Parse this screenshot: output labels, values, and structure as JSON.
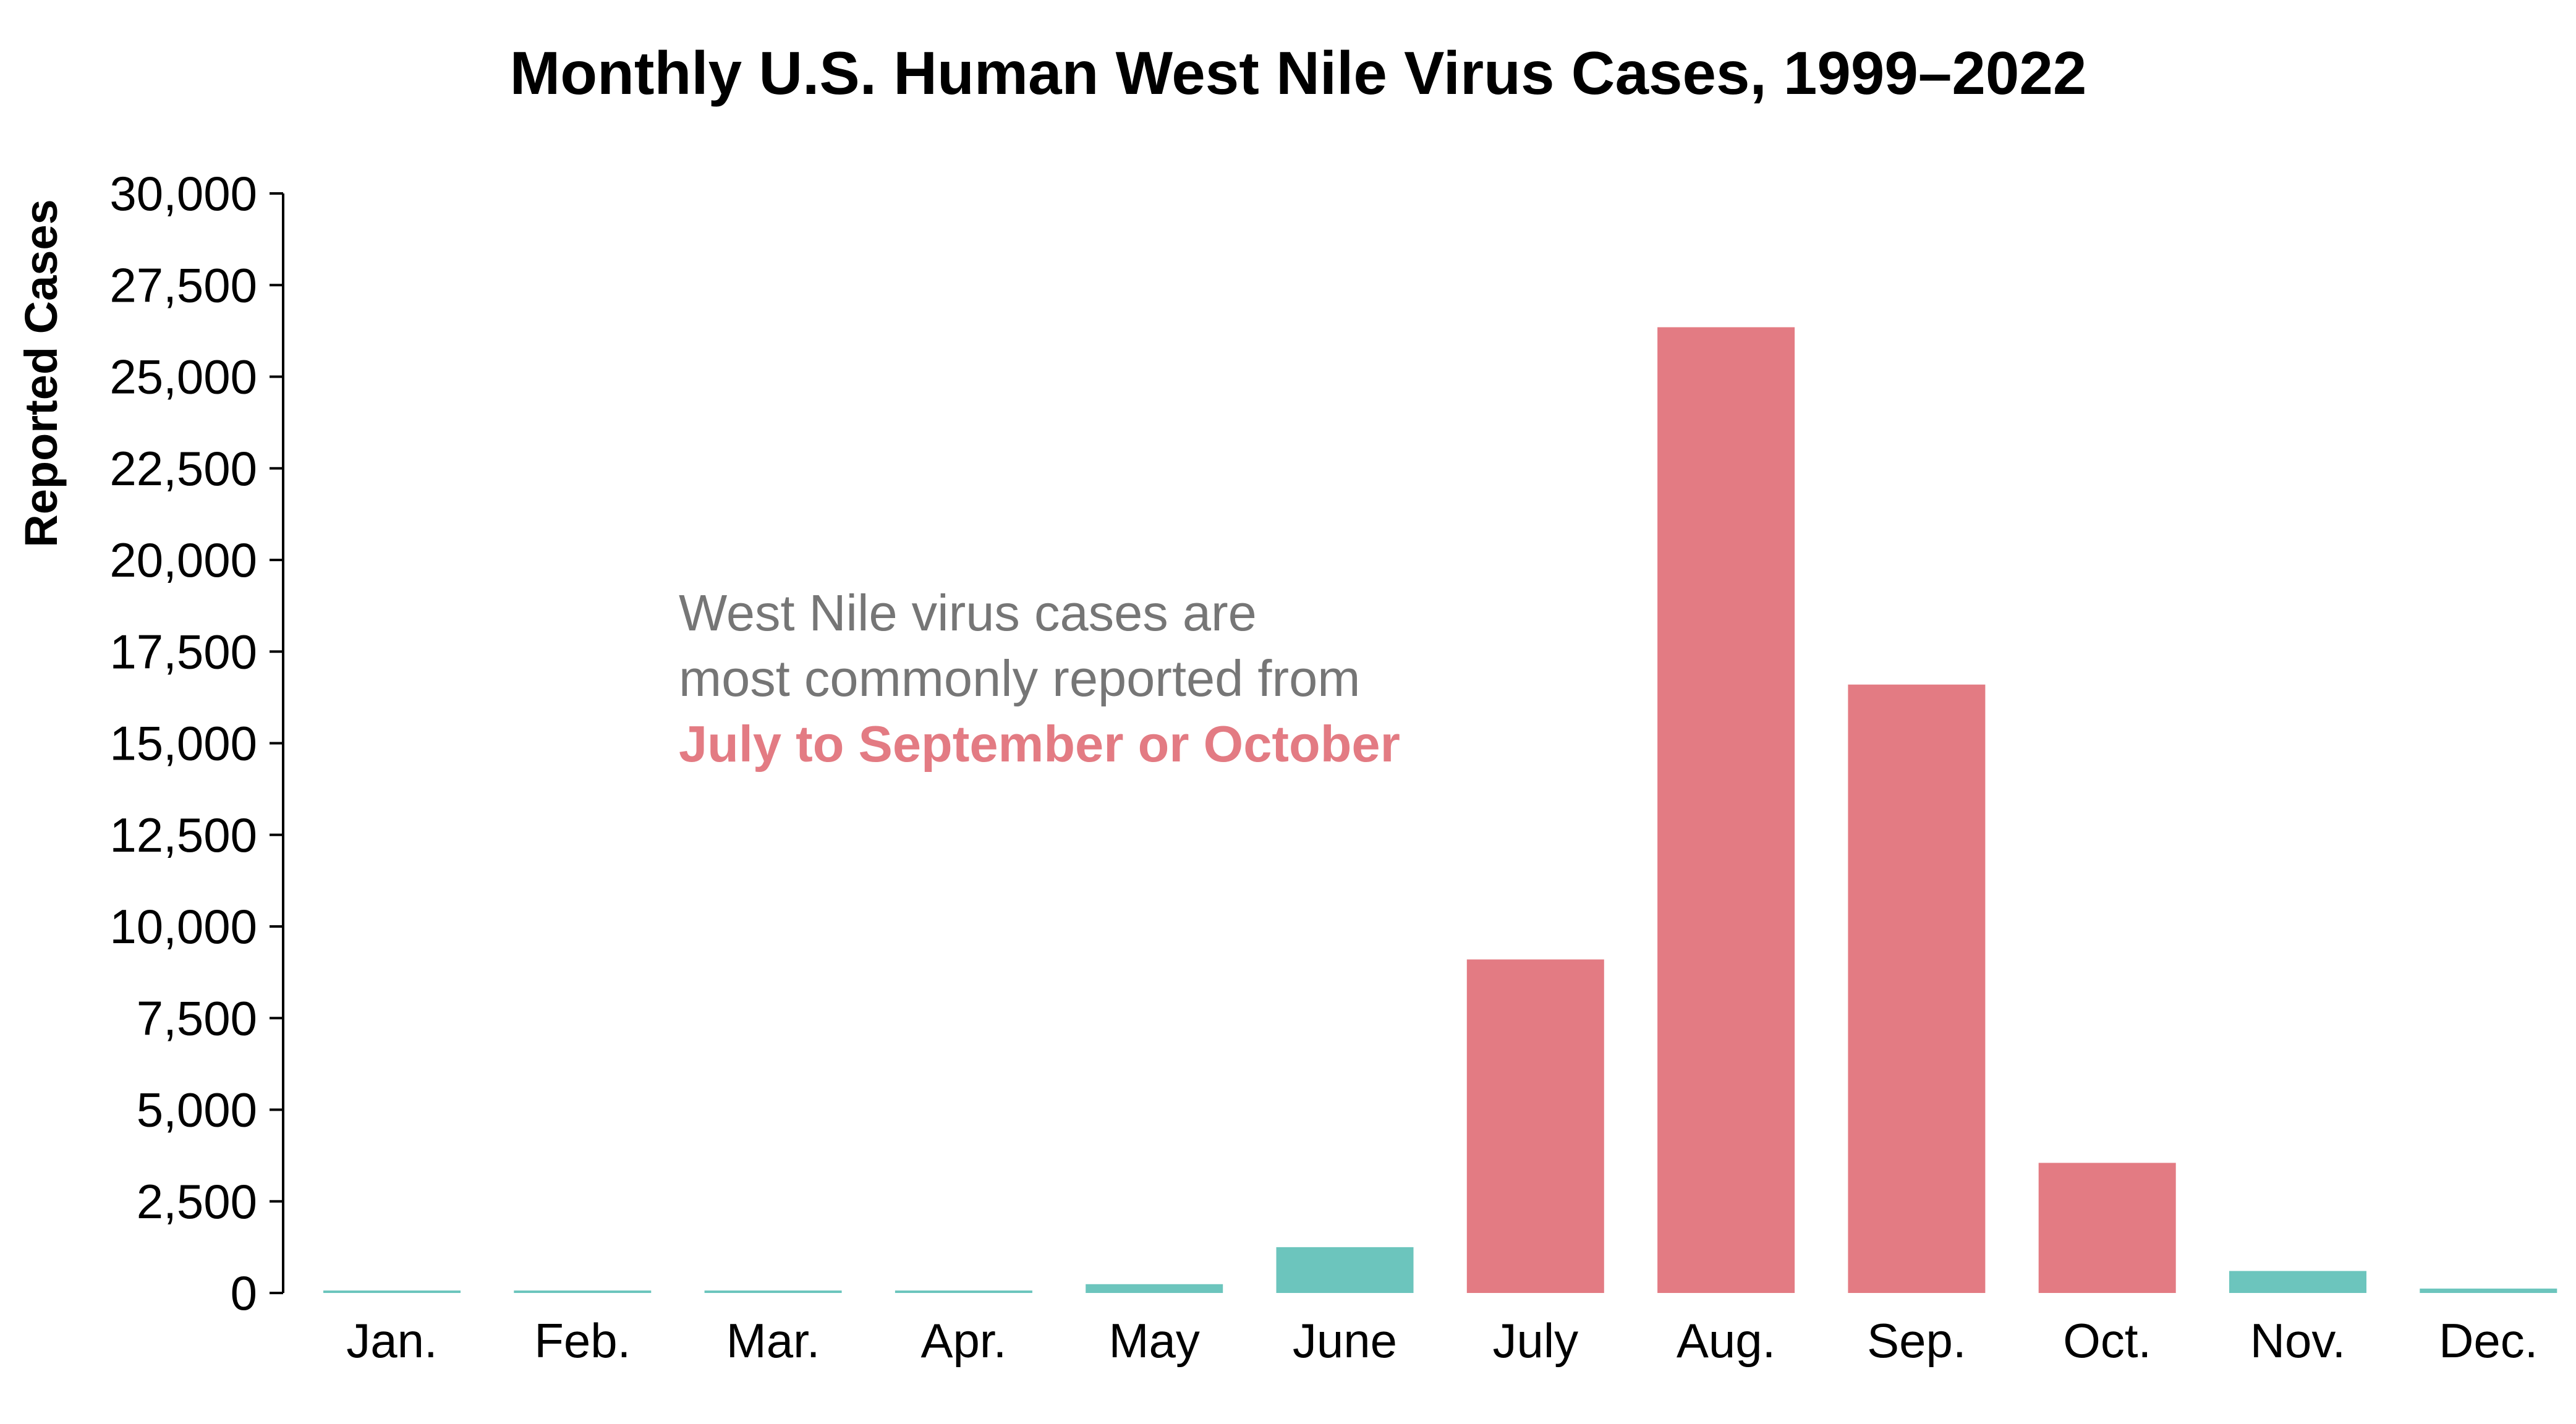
{
  "chart_data": {
    "type": "bar",
    "title": "Monthly U.S. Human West Nile Virus Cases, 1999–2022",
    "xlabel": "",
    "ylabel": "Reported Cases",
    "ylim": [
      0,
      30000
    ],
    "yticks": [
      "0",
      "2,500",
      "5,000",
      "7,500",
      "10,000",
      "12,500",
      "15,000",
      "17,500",
      "20,000",
      "22,500",
      "25,000",
      "27,500",
      "30,000"
    ],
    "categories": [
      "Jan.",
      "Feb.",
      "Mar.",
      "Apr.",
      "May",
      "June",
      "July",
      "Aug.",
      "Sep.",
      "Oct.",
      "Nov.",
      "Dec."
    ],
    "values": [
      40,
      25,
      40,
      60,
      240,
      1250,
      9100,
      26350,
      16600,
      3550,
      600,
      120
    ],
    "bar_colors": [
      "#6cc5bd",
      "#6cc5bd",
      "#6cc5bd",
      "#6cc5bd",
      "#6cc5bd",
      "#6cc5bd",
      "#e37b83",
      "#e37b83",
      "#e37b83",
      "#e37b83",
      "#6cc5bd",
      "#6cc5bd"
    ],
    "grid": false,
    "legend": "none",
    "annotation": {
      "line1": "West Nile virus cases are",
      "line2": "most commonly reported from",
      "line3": "July to September or October",
      "text_color": "#767676",
      "highlight_color": "#e37b83"
    }
  },
  "colors": {
    "peak_season": "#e37b83",
    "off_season": "#6cc5bd",
    "axis": "#000000"
  }
}
